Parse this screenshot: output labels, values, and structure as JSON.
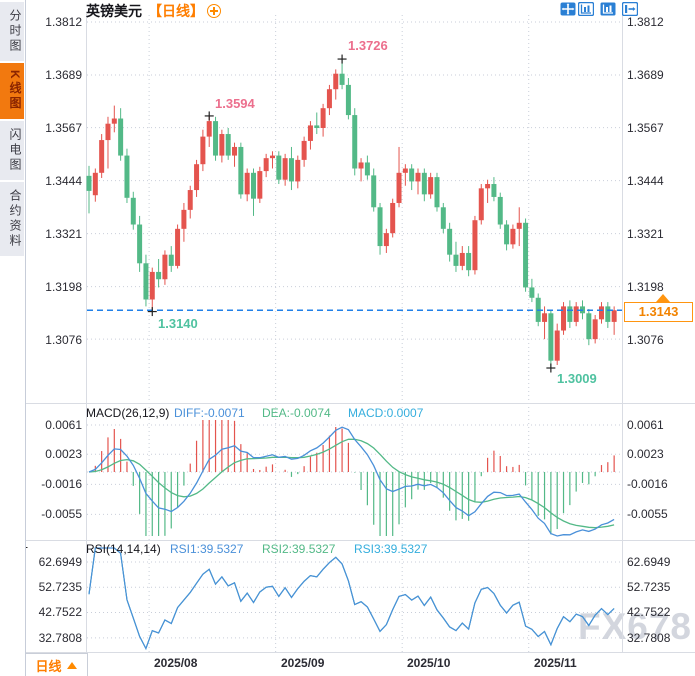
{
  "header": {
    "symbol": "英镑美元",
    "period": "【日线】"
  },
  "sidebar": {
    "items": [
      {
        "label": "分时图"
      },
      {
        "label": "K线图"
      },
      {
        "label": "闪电图"
      },
      {
        "label": "合约资料"
      }
    ]
  },
  "footer": {
    "period_label": "日线"
  },
  "watermark": "FX678",
  "colors": {
    "up": "#e4544e",
    "down": "#53b987",
    "diff_line": "#4a90d9",
    "dea_line": "#53b987",
    "macd_value": "#35aedd",
    "dashed_line": "#2080e8",
    "accent_orange": "#ff8400",
    "annotation_high": "#ec6f8d",
    "annotation_low": "#4fc2a0",
    "grid": "#c9ced9",
    "axis": "#d9dce3"
  },
  "main_chart": {
    "y_ticks": [
      "1.3812",
      "1.3689",
      "1.3567",
      "1.3444",
      "1.3321",
      "1.3198",
      "1.3076"
    ],
    "annotations": {
      "high1": "1.3594",
      "high2": "1.3726",
      "low1": "1.3140",
      "low2": "1.3009"
    },
    "current_price": "1.3143"
  },
  "macd": {
    "title": "MACD(26,12,9)",
    "diff": "DIFF:-0.0071",
    "dea": "DEA:-0.0074",
    "macd": "MACD:0.0007",
    "y_ticks": [
      "0.0061",
      "0.0023",
      "-0.0016",
      "-0.0055"
    ]
  },
  "rsi": {
    "title": "RSI(14,14,14)",
    "rsi1": "RSI1:39.5327",
    "rsi2": "RSI2:39.5327",
    "rsi3": "RSI3:39.5327",
    "y_ticks": [
      "62.6949",
      "52.7235",
      "42.7522",
      "32.7808"
    ]
  },
  "chart_data": {
    "type": "candlestick",
    "symbol": "英镑美元",
    "interval": "日线",
    "price_ticks": [
      1.3812,
      1.3689,
      1.3567,
      1.3444,
      1.3321,
      1.3198,
      1.3076
    ],
    "macd_ticks": [
      0.0061,
      0.0023,
      -0.0016,
      -0.0055
    ],
    "rsi_ticks": [
      62.6949,
      52.7235,
      42.7522,
      32.7808
    ],
    "current_price": 1.3143,
    "indicators": {
      "macd": {
        "params": [
          26,
          12,
          9
        ],
        "diff": -0.0071,
        "dea": -0.0074,
        "macd": 0.0007
      },
      "rsi": {
        "params": [
          14,
          14,
          14
        ],
        "rsi1": 39.5327,
        "rsi2": 39.5327,
        "rsi3": 39.5327
      }
    },
    "months": [
      {
        "label": "2025/08",
        "boundary_index": 10
      },
      {
        "label": "2025/09",
        "boundary_index": 30
      },
      {
        "label": "2025/10",
        "boundary_index": 50
      },
      {
        "label": "2025/11",
        "boundary_index": 70
      }
    ],
    "markers": [
      {
        "index": 10,
        "price": 1.314,
        "kind": "low"
      },
      {
        "index": 19,
        "price": 1.3594,
        "kind": "high"
      },
      {
        "index": 40,
        "price": 1.3726,
        "kind": "high"
      },
      {
        "index": 73,
        "price": 1.3009,
        "kind": "low"
      }
    ],
    "candles": [
      [
        1.3455,
        1.3478,
        1.3368,
        1.342
      ],
      [
        1.341,
        1.3472,
        1.3395,
        1.3462
      ],
      [
        1.3462,
        1.3552,
        1.345,
        1.3538
      ],
      [
        1.3538,
        1.3592,
        1.3472,
        1.3576
      ],
      [
        1.3576,
        1.3618,
        1.3556,
        1.3588
      ],
      [
        1.3588,
        1.3612,
        1.349,
        1.3502
      ],
      [
        1.3502,
        1.3518,
        1.3392,
        1.3404
      ],
      [
        1.3404,
        1.3418,
        1.333,
        1.3342
      ],
      [
        1.3342,
        1.3362,
        1.3232,
        1.3252
      ],
      [
        1.3252,
        1.3272,
        1.3152,
        1.3168
      ],
      [
        1.3168,
        1.3242,
        1.314,
        1.3232
      ],
      [
        1.3232,
        1.3262,
        1.3196,
        1.3215
      ],
      [
        1.3215,
        1.3282,
        1.3202,
        1.3272
      ],
      [
        1.3272,
        1.3292,
        1.3232,
        1.3246
      ],
      [
        1.3246,
        1.3342,
        1.324,
        1.3332
      ],
      [
        1.3332,
        1.3392,
        1.3302,
        1.3376
      ],
      [
        1.3376,
        1.3432,
        1.3356,
        1.3422
      ],
      [
        1.3422,
        1.3492,
        1.3406,
        1.3482
      ],
      [
        1.3482,
        1.3562,
        1.3466,
        1.3546
      ],
      [
        1.3546,
        1.3594,
        1.3522,
        1.3582
      ],
      [
        1.3582,
        1.3592,
        1.349,
        1.3502
      ],
      [
        1.3502,
        1.3562,
        1.3486,
        1.3552
      ],
      [
        1.3552,
        1.3566,
        1.3492,
        1.3502
      ],
      [
        1.3502,
        1.3532,
        1.3476,
        1.3522
      ],
      [
        1.3522,
        1.3532,
        1.3402,
        1.3412
      ],
      [
        1.3412,
        1.3472,
        1.3396,
        1.3462
      ],
      [
        1.3462,
        1.3472,
        1.3362,
        1.3402
      ],
      [
        1.3402,
        1.3476,
        1.3392,
        1.3466
      ],
      [
        1.3466,
        1.3506,
        1.3452,
        1.3496
      ],
      [
        1.3496,
        1.3512,
        1.3472,
        1.3502
      ],
      [
        1.3502,
        1.3512,
        1.3436,
        1.3446
      ],
      [
        1.3446,
        1.3506,
        1.3432,
        1.3496
      ],
      [
        1.3496,
        1.3522,
        1.3422,
        1.3442
      ],
      [
        1.3442,
        1.3502,
        1.3426,
        1.3492
      ],
      [
        1.3492,
        1.3546,
        1.3476,
        1.3536
      ],
      [
        1.3536,
        1.3582,
        1.3516,
        1.3572
      ],
      [
        1.3572,
        1.3602,
        1.3552,
        1.3566
      ],
      [
        1.3566,
        1.3622,
        1.3546,
        1.3612
      ],
      [
        1.3612,
        1.3666,
        1.3596,
        1.3656
      ],
      [
        1.3656,
        1.3702,
        1.3632,
        1.3692
      ],
      [
        1.3692,
        1.3726,
        1.3656,
        1.3666
      ],
      [
        1.3666,
        1.3682,
        1.3586,
        1.3596
      ],
      [
        1.3596,
        1.3612,
        1.3456,
        1.3472
      ],
      [
        1.3472,
        1.3496,
        1.3442,
        1.3486
      ],
      [
        1.3486,
        1.3502,
        1.3446,
        1.3456
      ],
      [
        1.3456,
        1.3472,
        1.3372,
        1.3382
      ],
      [
        1.3382,
        1.3392,
        1.3272,
        1.3292
      ],
      [
        1.3292,
        1.3332,
        1.3276,
        1.3322
      ],
      [
        1.3322,
        1.3402,
        1.3312,
        1.3392
      ],
      [
        1.3392,
        1.3522,
        1.3382,
        1.3462
      ],
      [
        1.3462,
        1.3482,
        1.3432,
        1.3472
      ],
      [
        1.3472,
        1.3482,
        1.3422,
        1.3442
      ],
      [
        1.3442,
        1.3472,
        1.3412,
        1.3462
      ],
      [
        1.3462,
        1.3472,
        1.3396,
        1.3412
      ],
      [
        1.3412,
        1.3462,
        1.3402,
        1.3452
      ],
      [
        1.3452,
        1.3462,
        1.3372,
        1.3382
      ],
      [
        1.3382,
        1.3392,
        1.3322,
        1.3332
      ],
      [
        1.3332,
        1.3346,
        1.3256,
        1.3272
      ],
      [
        1.3272,
        1.3302,
        1.3232,
        1.3246
      ],
      [
        1.3246,
        1.3292,
        1.3236,
        1.3276
      ],
      [
        1.3276,
        1.3292,
        1.3222,
        1.3236
      ],
      [
        1.3236,
        1.3362,
        1.3226,
        1.3352
      ],
      [
        1.3352,
        1.3436,
        1.3342,
        1.3426
      ],
      [
        1.3426,
        1.3446,
        1.3392,
        1.3436
      ],
      [
        1.3436,
        1.3452,
        1.3396,
        1.3406
      ],
      [
        1.3406,
        1.3416,
        1.3332,
        1.3342
      ],
      [
        1.3342,
        1.3352,
        1.3282,
        1.3296
      ],
      [
        1.3296,
        1.3342,
        1.3286,
        1.3332
      ],
      [
        1.3332,
        1.3382,
        1.3292,
        1.3346
      ],
      [
        1.3346,
        1.3356,
        1.3186,
        1.3196
      ],
      [
        1.3196,
        1.3216,
        1.3162,
        1.3172
      ],
      [
        1.3172,
        1.3182,
        1.3106,
        1.3116
      ],
      [
        1.3116,
        1.3152,
        1.3076,
        1.3136
      ],
      [
        1.3136,
        1.3142,
        1.3009,
        1.3026
      ],
      [
        1.3026,
        1.3112,
        1.3016,
        1.3096
      ],
      [
        1.3096,
        1.3162,
        1.3086,
        1.3152
      ],
      [
        1.3152,
        1.3166,
        1.3102,
        1.3116
      ],
      [
        1.3116,
        1.3162,
        1.3106,
        1.3152
      ],
      [
        1.3152,
        1.3166,
        1.3122,
        1.3136
      ],
      [
        1.3136,
        1.3146,
        1.3062,
        1.3076
      ],
      [
        1.3076,
        1.3132,
        1.3066,
        1.3122
      ],
      [
        1.3122,
        1.3162,
        1.3112,
        1.3152
      ],
      [
        1.3152,
        1.3162,
        1.3102,
        1.3116
      ],
      [
        1.3116,
        1.3152,
        1.3086,
        1.3143
      ]
    ]
  }
}
